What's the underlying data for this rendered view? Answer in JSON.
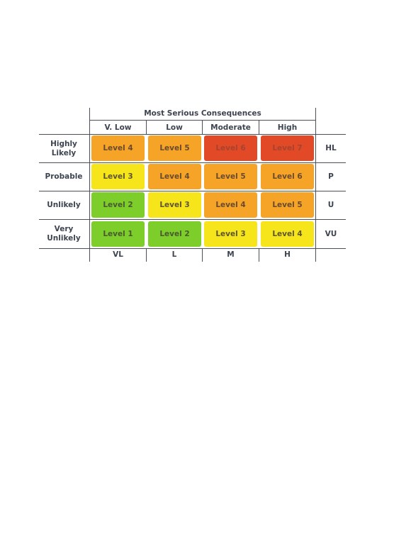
{
  "header": {
    "title": "Most Serious Consequences"
  },
  "columns": {
    "top": [
      "V. Low",
      "Low",
      "Moderate",
      "High"
    ],
    "bottom": [
      "VL",
      "L",
      "M",
      "H"
    ]
  },
  "rows": [
    {
      "label": "Highly\nLikely",
      "code": "HL",
      "cells": [
        "Level 4",
        "Level 5",
        "Level 6",
        "Level 7"
      ]
    },
    {
      "label": "Probable",
      "code": "P",
      "cells": [
        "Level 3",
        "Level 4",
        "Level 5",
        "Level 6"
      ]
    },
    {
      "label": "Unlikely",
      "code": "U",
      "cells": [
        "Level 2",
        "Level 3",
        "Level 4",
        "Level 5"
      ]
    },
    {
      "label": "Very\nUnlikely",
      "code": "VU",
      "cells": [
        "Level 1",
        "Level 2",
        "Level 3",
        "Level 4"
      ]
    }
  ],
  "colors": {
    "green": "#7dcd2b",
    "yellow": "#f7e51c",
    "orange": "#f6a428",
    "red": "#e14927"
  }
}
